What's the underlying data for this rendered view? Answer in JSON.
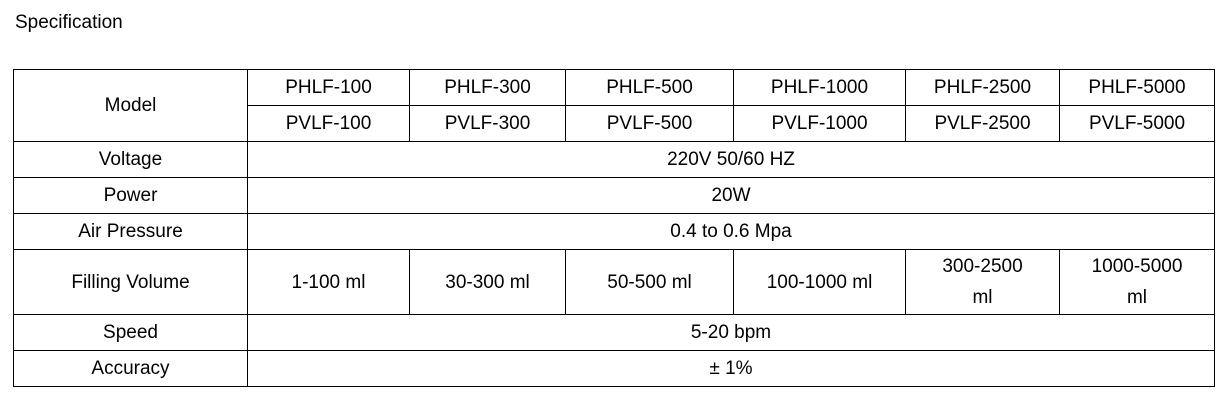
{
  "title": "Specification",
  "table": {
    "model": {
      "label": "Model",
      "rows": [
        [
          "PHLF-100",
          "PHLF-300",
          "PHLF-500",
          "PHLF-1000",
          "PHLF-2500",
          "PHLF-5000"
        ],
        [
          "PVLF-100",
          "PVLF-300",
          "PVLF-500",
          "PVLF-1000",
          "PVLF-2500",
          "PVLF-5000"
        ]
      ]
    },
    "rows": [
      {
        "label": "Voltage",
        "value": "220V 50/60 HZ"
      },
      {
        "label": "Power",
        "value": "20W"
      },
      {
        "label": "Air Pressure",
        "value": "0.4 to 0.6 Mpa"
      },
      {
        "label": "Filling Volume",
        "values": [
          "1-100 ml",
          "30-300 ml",
          "50-500 ml",
          "100-1000 ml",
          "300-2500 ml",
          "1000-5000 ml"
        ]
      },
      {
        "label": "Speed",
        "value": "5-20 bpm"
      },
      {
        "label": "Accuracy",
        "value": "± 1%"
      }
    ]
  }
}
